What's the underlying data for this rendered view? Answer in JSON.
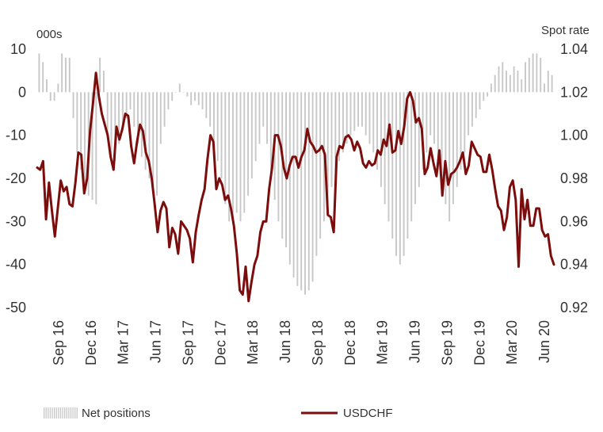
{
  "chart_data": {
    "type": "bar+line",
    "left_axis_title": "000s",
    "right_axis_title": "Spot rate",
    "left_ylim": [
      -50,
      10
    ],
    "right_ylim": [
      0.92,
      1.04
    ],
    "left_ticks": [
      "10",
      "0",
      "-10",
      "-20",
      "-30",
      "-40",
      "-50"
    ],
    "right_ticks": [
      "1.04",
      "1.02",
      "1.00",
      "0.98",
      "0.96",
      "0.94",
      "0.92"
    ],
    "x_labels": [
      "Sep 16",
      "Dec 16",
      "Mar 17",
      "Jun 17",
      "Sep 17",
      "Dec 17",
      "Mar 18",
      "Jun 18",
      "Sep 18",
      "Dec 18",
      "Mar 19",
      "Jun 19",
      "Sep 19",
      "Dec 19",
      "Mar 20",
      "Jun 20"
    ],
    "legend": [
      "Net positions",
      "USDCHF"
    ],
    "series": [
      {
        "name": "Net positions",
        "kind": "bar",
        "axis": "left",
        "color": "#c8c8c8",
        "values": [
          9,
          7,
          3,
          -2,
          -2,
          2,
          9,
          8,
          8,
          -6,
          -14,
          -18,
          -22,
          -24,
          -25,
          -26,
          8,
          5,
          -10,
          -15,
          -16,
          -12,
          -9,
          -6,
          -4,
          -8,
          -12,
          -15,
          -18,
          -20,
          -22,
          -24,
          -12,
          -8,
          -4,
          -2,
          0,
          2,
          0,
          -1,
          -3,
          -2,
          -3,
          -4,
          -6,
          -8,
          -12,
          -16,
          -20,
          -26,
          -30,
          -30,
          -28,
          -30,
          -28,
          -24,
          -20,
          -16,
          -12,
          -8,
          -12,
          -18,
          -25,
          -30,
          -34,
          -36,
          -40,
          -43,
          -45,
          -46,
          -47,
          -46,
          -44,
          -38,
          -34,
          -30,
          -26,
          -22,
          -20,
          -16,
          -14,
          -12,
          -10,
          -9,
          -8,
          -8,
          -10,
          -12,
          -14,
          -18,
          -22,
          -26,
          -30,
          -34,
          -38,
          -40,
          -38,
          -34,
          -30,
          -26,
          -22,
          -18,
          -14,
          -10,
          -12,
          -18,
          -22,
          -26,
          -30,
          -26,
          -22,
          -18,
          -14,
          -10,
          -8,
          -6,
          -4,
          -2,
          -1,
          2,
          4,
          6,
          7,
          5,
          4,
          6,
          5,
          3,
          7,
          8,
          9,
          9,
          8,
          2,
          5,
          4
        ]
      },
      {
        "name": "USDCHF",
        "kind": "line",
        "axis": "right",
        "color": "#7b0d0d",
        "values": [
          0.985,
          0.984,
          0.988,
          0.961,
          0.978,
          0.965,
          0.953,
          0.966,
          0.979,
          0.974,
          0.976,
          0.968,
          0.967,
          0.978,
          0.992,
          0.991,
          0.973,
          0.98,
          1.002,
          1.015,
          1.029,
          1.018,
          1.01,
          1.005,
          1.0,
          0.99,
          0.984,
          1.004,
          0.998,
          1.003,
          1.01,
          1.009,
          0.995,
          0.987,
          0.997,
          1.005,
          1.002,
          0.992,
          0.988,
          0.98,
          0.968,
          0.955,
          0.965,
          0.969,
          0.966,
          0.948,
          0.957,
          0.954,
          0.945,
          0.96,
          0.958,
          0.956,
          0.952,
          0.941,
          0.955,
          0.963,
          0.97,
          0.975,
          0.989,
          1.0,
          0.997,
          0.975,
          0.98,
          0.977,
          0.97,
          0.972,
          0.966,
          0.958,
          0.945,
          0.928,
          0.926,
          0.939,
          0.923,
          0.932,
          0.94,
          0.944,
          0.955,
          0.96,
          0.96,
          0.975,
          0.985,
          1.0,
          1.0,
          0.995,
          0.985,
          0.98,
          0.986,
          0.99,
          0.99,
          0.985,
          0.99,
          0.993,
          1.003,
          0.997,
          0.995,
          0.992,
          0.993,
          0.995,
          0.991,
          0.963,
          0.962,
          0.955,
          0.99,
          0.995,
          0.994,
          0.999,
          1.0,
          0.998,
          0.993,
          0.997,
          0.994,
          0.987,
          0.985,
          0.988,
          0.986,
          0.987,
          0.993,
          0.991,
          0.998,
          0.995,
          1.005,
          0.992,
          0.993,
          1.002,
          0.996,
          1.004,
          1.017,
          1.02,
          1.016,
          1.006,
          1.008,
          1.003,
          0.982,
          0.985,
          0.994,
          0.987,
          0.981,
          0.993,
          0.972,
          0.988,
          0.977,
          0.982,
          0.983,
          0.985,
          0.988,
          0.992,
          0.982,
          0.986,
          0.997,
          0.994,
          0.991,
          0.99,
          0.983,
          0.983,
          0.991,
          0.984,
          0.975,
          0.967,
          0.965,
          0.956,
          0.962,
          0.976,
          0.979,
          0.97,
          0.939,
          0.975,
          0.961,
          0.97,
          0.958,
          0.958,
          0.966,
          0.966,
          0.956,
          0.953,
          0.954,
          0.944,
          0.94
        ]
      }
    ]
  }
}
